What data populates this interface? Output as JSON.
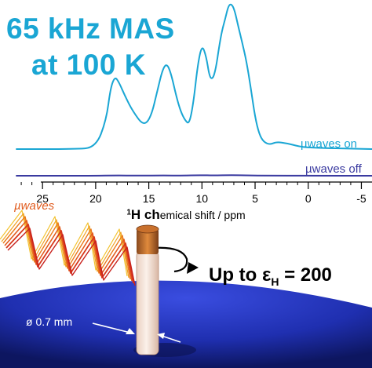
{
  "headline": {
    "line1": "65 kHz MAS",
    "line2": "at 100 K",
    "color": "#1aa6d4"
  },
  "chart_data": {
    "type": "line",
    "xlabel_parts": {
      "sup": "1",
      "bold": "H ch",
      "rest": "emical shift / ppm"
    },
    "xlim": [
      29,
      -6
    ],
    "x_reversed": true,
    "xticks": [
      "25",
      "20",
      "15",
      "10",
      "5",
      "0",
      "-5"
    ],
    "xtick_values": [
      25,
      20,
      15,
      10,
      5,
      0,
      -5
    ],
    "grid": false,
    "series": [
      {
        "name": "µwaves on",
        "color": "#1aa6d4",
        "x": [
          27.5,
          22,
          20,
          19,
          18.6,
          18.2,
          17.8,
          17.2,
          16.5,
          15.5,
          14.8,
          14.2,
          13.7,
          13.3,
          12.9,
          12.4,
          12.0,
          11.6,
          11.2,
          10.8,
          10.4,
          10.0,
          9.6,
          9.3,
          9.0,
          8.7,
          8.4,
          8.1,
          7.8,
          7.5,
          7.2,
          6.9,
          6.6,
          6.2,
          5.8,
          5.4,
          5.0,
          4.6,
          4.2,
          3.6,
          3.0,
          2.0,
          1.0,
          0.0,
          -6
        ],
        "y": [
          0.0,
          0.0,
          0.01,
          0.2,
          0.42,
          0.5,
          0.46,
          0.36,
          0.26,
          0.16,
          0.22,
          0.4,
          0.55,
          0.59,
          0.52,
          0.36,
          0.26,
          0.2,
          0.17,
          0.32,
          0.58,
          0.72,
          0.64,
          0.5,
          0.48,
          0.55,
          0.7,
          0.82,
          0.9,
          0.99,
          1.0,
          0.95,
          0.85,
          0.73,
          0.6,
          0.42,
          0.22,
          0.1,
          0.05,
          0.03,
          0.05,
          0.04,
          0.02,
          0.01,
          0.0
        ]
      },
      {
        "name": "µwaves off",
        "color": "#3a3aa0",
        "x": [
          27.5,
          20,
          18.2,
          16,
          13.5,
          12,
          10,
          9,
          7.2,
          5.5,
          4,
          0,
          -6
        ],
        "y": [
          0.0,
          0.0,
          0.01,
          0.005,
          0.012,
          0.005,
          0.018,
          0.01,
          0.02,
          0.01,
          0.005,
          0.0,
          0.0
        ]
      }
    ]
  },
  "illustration": {
    "microwave_label": "µwaves",
    "microwave_color": "#e05a1c",
    "probe_diameter_label": "ø 0.7 mm",
    "enhancement_prefix": "Up to ",
    "enhancement_symbol": "ε",
    "enhancement_subscript": "H",
    "enhancement_suffix": " = 200",
    "stator_color": "#1f2fb0"
  }
}
